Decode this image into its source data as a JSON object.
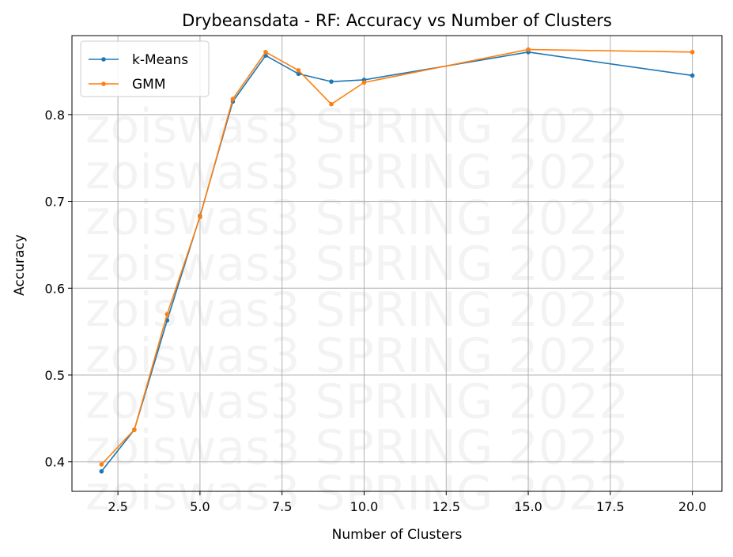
{
  "chart_data": {
    "type": "line",
    "title": "Drybeansdata - RF: Accuracy vs Number of Clusters",
    "xlabel": "Number of Clusters",
    "ylabel": "Accuracy",
    "xlim": [
      1.1,
      20.9
    ],
    "ylim": [
      0.366,
      0.891
    ],
    "xticks": [
      2.5,
      5.0,
      7.5,
      10.0,
      12.5,
      15.0,
      17.5,
      20.0
    ],
    "xtick_labels": [
      "2.5",
      "5.0",
      "7.5",
      "10.0",
      "12.5",
      "15.0",
      "17.5",
      "20.0"
    ],
    "yticks": [
      0.4,
      0.5,
      0.6,
      0.7,
      0.8
    ],
    "ytick_labels": [
      "0.4",
      "0.5",
      "0.6",
      "0.7",
      "0.8"
    ],
    "grid": true,
    "legend_position": "top-left",
    "watermark": "zoiswas3 SPRING 2022",
    "series": [
      {
        "name": "k-Means",
        "color": "#1f77b4",
        "x": [
          2,
          3,
          4,
          5,
          6,
          7,
          8,
          9,
          10,
          15,
          20
        ],
        "y": [
          0.389,
          0.437,
          0.563,
          0.683,
          0.815,
          0.868,
          0.847,
          0.838,
          0.84,
          0.872,
          0.845
        ]
      },
      {
        "name": "GMM",
        "color": "#ff7f0e",
        "x": [
          2,
          3,
          4,
          5,
          6,
          7,
          8,
          9,
          10,
          15,
          20
        ],
        "y": [
          0.397,
          0.437,
          0.57,
          0.682,
          0.818,
          0.872,
          0.851,
          0.812,
          0.837,
          0.875,
          0.872
        ]
      }
    ]
  }
}
